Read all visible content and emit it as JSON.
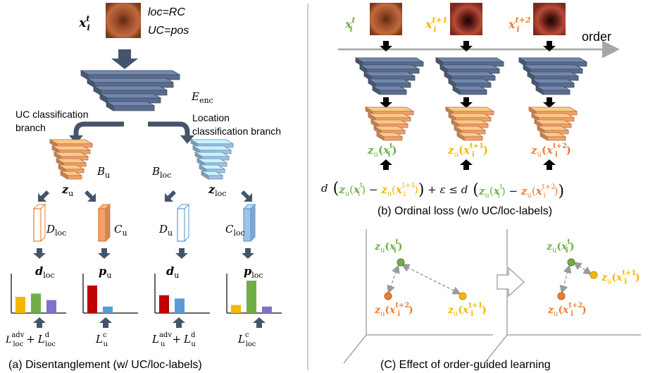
{
  "colors": {
    "encoder": "#5a6d8c",
    "uc_branch": "#f4a06a",
    "loc_branch": "#9ec3e6",
    "green": "#70ad47",
    "yellow": "#f2b800",
    "orange": "#ed7d31",
    "purple": "#7f72c7",
    "red": "#c00000",
    "blue": "#5b9bd5",
    "arrow_dark": "#44546a",
    "divider": "#9dc3e6"
  },
  "panel_a": {
    "input_var": "x",
    "input_sup": "t",
    "input_sub": "i",
    "meta_loc": "loc=RC",
    "meta_uc": "UC=pos",
    "encoder_label": "E",
    "encoder_sub": "enc",
    "uc_branch_label_1": "UC classification",
    "uc_branch_label_2": "branch",
    "loc_branch_label_1": "Location",
    "loc_branch_label_2": "classification branch",
    "bu_label": "B",
    "bu_sub": "u",
    "bloc_label": "B",
    "bloc_sub": "loc",
    "zu_label": "z",
    "zu_sub": "u",
    "zloc_label": "z",
    "zloc_sub": "loc",
    "dloc_head": "D",
    "dloc_head_sub": "loc",
    "cu_head": "C",
    "cu_head_sub": "u",
    "du_head": "D",
    "du_head_sub": "u",
    "cloc_head": "C",
    "cloc_head_sub": "loc",
    "out_dloc": "d",
    "out_dloc_sub": "loc",
    "out_pu": "p",
    "out_pu_sub": "u",
    "out_du": "d",
    "out_du_sub": "u",
    "out_ploc": "p",
    "out_ploc_sub": "loc",
    "loss_1_main": "L",
    "loss_1_sup_a": "adv",
    "loss_1_sub_a": "loc",
    "loss_1_plus": "+",
    "loss_1_sup_b": "d",
    "loss_1_sub_b": "loc",
    "loss_2_sup": "c",
    "loss_2_sub": "u",
    "loss_3_sup_a": "adv",
    "loss_3_sub_a": "u",
    "loss_3_sup_b": "d",
    "loss_3_sub_b": "u",
    "loss_4_sup": "c",
    "loss_4_sub": "loc",
    "caption": "(a)  Disentanglement (w/ UC/loc-labels)"
  },
  "panel_b": {
    "order_label": "order",
    "x_sup_0": "t",
    "x_sup_1": "t+1",
    "x_sup_2": "t+2",
    "caption": "(b) Ordinal loss (w/o UC/loc-labels)"
  },
  "panel_c": {
    "pt_t": "t",
    "pt_t1": "t+1",
    "pt_t2": "t+2",
    "caption": "(C) Effect of order-guided learning"
  },
  "chart_data": [
    {
      "type": "bar",
      "name_ref": "d_loc",
      "values": [
        0.5,
        0.6,
        0.4
      ]
    },
    {
      "type": "bar",
      "name_ref": "p_u",
      "values": [
        0.85,
        0.2
      ]
    },
    {
      "type": "bar",
      "name_ref": "d_u",
      "values": [
        0.55,
        0.45
      ]
    },
    {
      "type": "bar",
      "name_ref": "p_loc",
      "values": [
        0.25,
        1.0,
        0.2
      ]
    }
  ]
}
